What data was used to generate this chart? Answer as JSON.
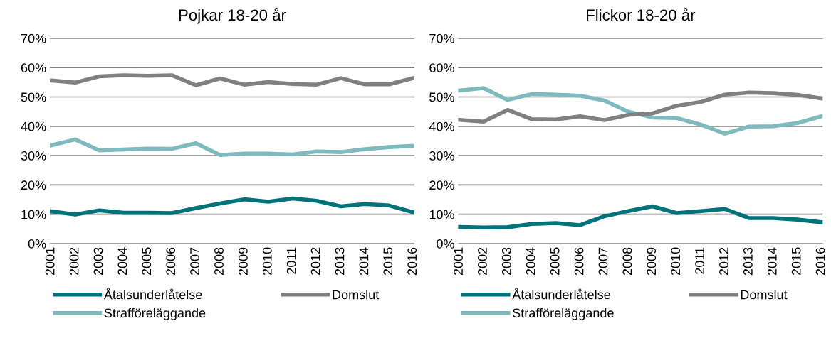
{
  "chart_data": [
    {
      "type": "line",
      "title": "Pojkar 18-20 år",
      "categories": [
        "2001",
        "2002",
        "2003",
        "2004",
        "2005",
        "2006",
        "2007",
        "2008",
        "2009",
        "2010",
        "2011",
        "2012",
        "2013",
        "2014",
        "2015",
        "2016"
      ],
      "ylim": [
        0,
        70
      ],
      "yticks": [
        {
          "value": 0,
          "label": "0%"
        },
        {
          "value": 10,
          "label": "10%"
        },
        {
          "value": 20,
          "label": "20%"
        },
        {
          "value": 30,
          "label": "30%"
        },
        {
          "value": 40,
          "label": "40%"
        },
        {
          "value": 50,
          "label": "50%"
        },
        {
          "value": 60,
          "label": "60%"
        },
        {
          "value": 70,
          "label": "70%"
        }
      ],
      "grid": "y",
      "legend": "bottom",
      "marker": "none",
      "line_style": "solid",
      "series": [
        {
          "name": "Åtalsunderlåtelse",
          "color": "#00737a",
          "values": [
            11.0,
            9.9,
            11.3,
            10.5,
            10.5,
            10.4,
            12.1,
            13.7,
            15.1,
            14.3,
            15.4,
            14.6,
            12.7,
            13.5,
            13.0,
            10.7
          ]
        },
        {
          "name": "Strafföreläggande",
          "color": "#7fbabe",
          "values": [
            33.5,
            35.5,
            31.8,
            32.1,
            32.4,
            32.3,
            34.2,
            30.2,
            30.7,
            30.7,
            30.4,
            31.4,
            31.2,
            32.2,
            32.9,
            33.3
          ]
        },
        {
          "name": "Domslut",
          "color": "#808080",
          "values": [
            55.6,
            54.9,
            57.0,
            57.4,
            57.2,
            57.4,
            54.0,
            56.3,
            54.2,
            55.1,
            54.4,
            54.2,
            56.4,
            54.3,
            54.3,
            56.4
          ]
        }
      ]
    },
    {
      "type": "line",
      "title": "Flickor 18-20 år",
      "categories": [
        "2001",
        "2002",
        "2003",
        "2004",
        "2005",
        "2006",
        "2007",
        "2008",
        "2009",
        "2010",
        "2011",
        "2012",
        "2013",
        "2014",
        "2015",
        "2016"
      ],
      "ylim": [
        0,
        70
      ],
      "yticks": [
        {
          "value": 0,
          "label": "0%"
        },
        {
          "value": 10,
          "label": "10%"
        },
        {
          "value": 20,
          "label": "20%"
        },
        {
          "value": 30,
          "label": "30%"
        },
        {
          "value": 40,
          "label": "40%"
        },
        {
          "value": 50,
          "label": "50%"
        },
        {
          "value": 60,
          "label": "60%"
        },
        {
          "value": 70,
          "label": "70%"
        }
      ],
      "grid": "y",
      "legend": "bottom",
      "marker": "none",
      "line_style": "solid",
      "series": [
        {
          "name": "Åtalsunderlåtelse",
          "color": "#00737a",
          "values": [
            5.7,
            5.5,
            5.6,
            6.7,
            7.0,
            6.3,
            9.3,
            11.1,
            12.7,
            10.4,
            11.1,
            11.8,
            8.7,
            8.7,
            8.2,
            7.3
          ]
        },
        {
          "name": "Strafföreläggande",
          "color": "#7fbabe",
          "values": [
            52.2,
            53.0,
            49.0,
            51.0,
            50.8,
            50.4,
            48.8,
            45.0,
            43.0,
            42.8,
            40.6,
            37.5,
            39.9,
            40.0,
            41.1,
            43.4
          ]
        },
        {
          "name": "Domslut",
          "color": "#808080",
          "values": [
            42.2,
            41.6,
            45.6,
            42.4,
            42.3,
            43.4,
            42.1,
            43.9,
            44.4,
            47.0,
            48.3,
            50.8,
            51.5,
            51.3,
            50.7,
            49.5
          ]
        }
      ]
    }
  ]
}
